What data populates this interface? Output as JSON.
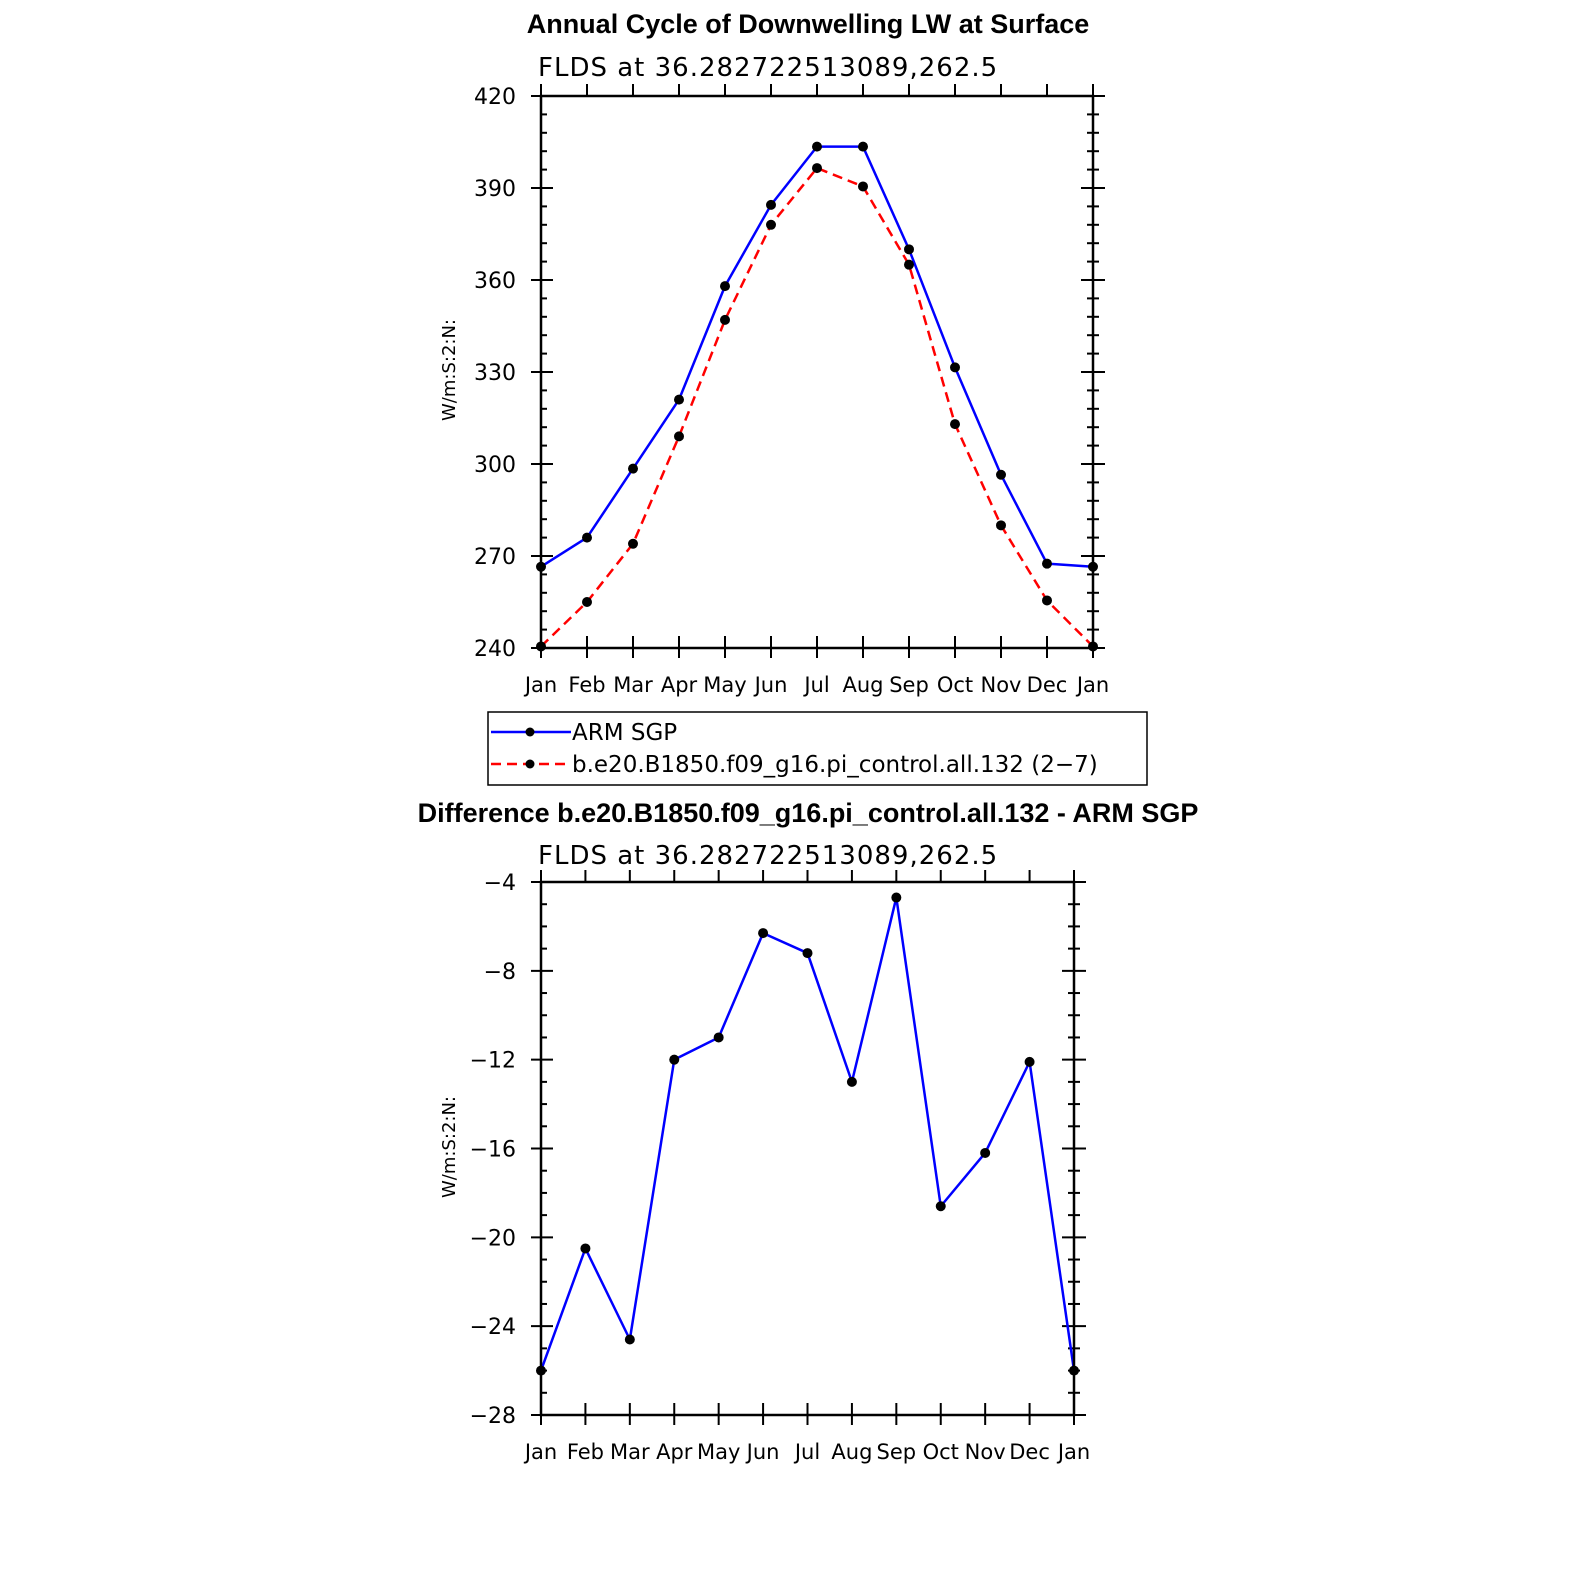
{
  "chart_data": [
    {
      "type": "line",
      "title": "Annual Cycle of Downwelling LW at Surface",
      "subtitle": "FLDS at 36.282722513089,262.5",
      "xlabel": "",
      "ylabel": "W/m:S:2:N:",
      "categories": [
        "Jan",
        "Feb",
        "Mar",
        "Apr",
        "May",
        "Jun",
        "Jul",
        "Aug",
        "Sep",
        "Oct",
        "Nov",
        "Dec",
        "Jan"
      ],
      "ylim": [
        240,
        420
      ],
      "yticks": [
        240,
        270,
        300,
        330,
        360,
        390,
        420
      ],
      "legend_position": "below",
      "series": [
        {
          "name": "ARM SGP",
          "color": "#0000ff",
          "dash": "solid",
          "values": [
            266.5,
            276,
            298.5,
            321,
            358,
            384.5,
            403.5,
            403.5,
            370,
            331.5,
            296.5,
            267.5,
            266.5
          ]
        },
        {
          "name": "b.e20.B1850.f09_g16.pi_control.all.132 (2−7)",
          "color": "#ff0000",
          "dash": "dashed",
          "values": [
            240.5,
            255,
            274,
            309,
            347,
            378,
            396.5,
            390.5,
            365,
            313,
            280,
            255.5,
            240.5
          ]
        }
      ]
    },
    {
      "type": "line",
      "title": "Difference b.e20.B1850.f09_g16.pi_control.all.132 - ARM SGP",
      "subtitle": "FLDS at 36.282722513089,262.5",
      "xlabel": "",
      "ylabel": "W/m:S:2:N:",
      "categories": [
        "Jan",
        "Feb",
        "Mar",
        "Apr",
        "May",
        "Jun",
        "Jul",
        "Aug",
        "Sep",
        "Oct",
        "Nov",
        "Dec",
        "Jan"
      ],
      "ylim": [
        -28,
        -4
      ],
      "yticks": [
        -28,
        -24,
        -20,
        -16,
        -12,
        -8,
        -4
      ],
      "ytick_labels": [
        "−28",
        "−24",
        "−20",
        "−16",
        "−12",
        "−8",
        "−4"
      ],
      "series": [
        {
          "name": "Difference",
          "color": "#0000ff",
          "dash": "solid",
          "values": [
            -26,
            -20.5,
            -24.6,
            -12,
            -11,
            -6.3,
            -7.2,
            -13,
            -4.7,
            -18.6,
            -16.2,
            -12.1,
            -26
          ]
        }
      ]
    }
  ]
}
